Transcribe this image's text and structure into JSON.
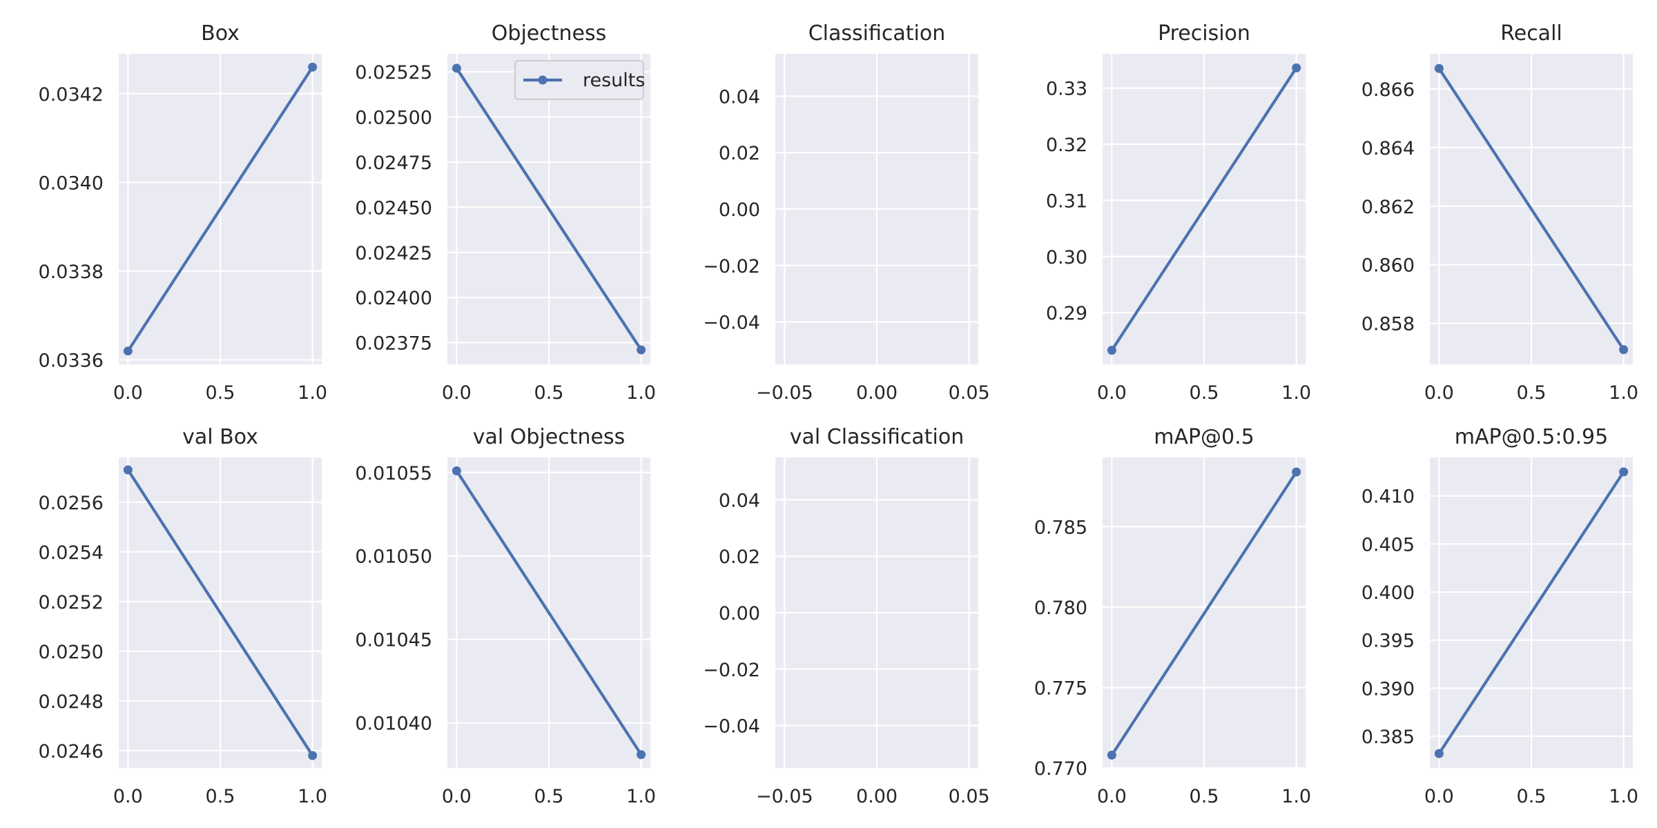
{
  "chart_data": [
    {
      "type": "line",
      "title": "Box",
      "x": [
        0,
        1
      ],
      "series": [
        {
          "values": [
            0.03362,
            0.03426
          ]
        }
      ],
      "xlim": [
        -0.05,
        1.05
      ],
      "ylim": [
        0.03359,
        0.03429
      ],
      "xticks": [
        "0.0",
        "0.5",
        "1.0"
      ],
      "yticks": [
        "0.0336",
        "0.0338",
        "0.0340",
        "0.0342"
      ],
      "grid": true
    },
    {
      "type": "line",
      "title": "Objectness",
      "x": [
        0,
        1
      ],
      "series": [
        {
          "name": "results",
          "values": [
            0.02527,
            0.02371
          ]
        }
      ],
      "legend": "top-right",
      "xlim": [
        -0.05,
        1.05
      ],
      "ylim": [
        0.02363,
        0.02535
      ],
      "xticks": [
        "0.0",
        "0.5",
        "1.0"
      ],
      "yticks": [
        "0.02375",
        "0.02400",
        "0.02425",
        "0.02450",
        "0.02475",
        "0.02500",
        "0.02525"
      ],
      "grid": true
    },
    {
      "type": "line",
      "title": "Classification",
      "x": [],
      "series": [
        {
          "values": []
        }
      ],
      "xlim": [
        -0.055,
        0.055
      ],
      "ylim": [
        -0.055,
        0.055
      ],
      "xticks": [
        "−0.05",
        "0.00",
        "0.05"
      ],
      "yticks": [
        "−0.04",
        "−0.02",
        "0.00",
        "0.02",
        "0.04"
      ],
      "grid": true
    },
    {
      "type": "line",
      "title": "Precision",
      "x": [
        0,
        1
      ],
      "series": [
        {
          "values": [
            0.2833,
            0.3336
          ]
        }
      ],
      "xlim": [
        -0.05,
        1.05
      ],
      "ylim": [
        0.2808,
        0.3361
      ],
      "xticks": [
        "0.0",
        "0.5",
        "1.0"
      ],
      "yticks": [
        "0.29",
        "0.30",
        "0.31",
        "0.32",
        "0.33"
      ],
      "grid": true
    },
    {
      "type": "line",
      "title": "Recall",
      "x": [
        0,
        1
      ],
      "series": [
        {
          "values": [
            0.8667,
            0.8571
          ]
        }
      ],
      "xlim": [
        -0.05,
        1.05
      ],
      "ylim": [
        0.8566,
        0.8672
      ],
      "xticks": [
        "0.0",
        "0.5",
        "1.0"
      ],
      "yticks": [
        "0.858",
        "0.860",
        "0.862",
        "0.864",
        "0.866"
      ],
      "grid": true
    },
    {
      "type": "line",
      "title": "val Box",
      "x": [
        0,
        1
      ],
      "series": [
        {
          "values": [
            0.02573,
            0.02458
          ]
        }
      ],
      "xlim": [
        -0.05,
        1.05
      ],
      "ylim": [
        0.02453,
        0.02578
      ],
      "xticks": [
        "0.0",
        "0.5",
        "1.0"
      ],
      "yticks": [
        "0.0246",
        "0.0248",
        "0.0250",
        "0.0252",
        "0.0254",
        "0.0256"
      ],
      "grid": true
    },
    {
      "type": "line",
      "title": "val Objectness",
      "x": [
        0,
        1
      ],
      "series": [
        {
          "values": [
            0.010551,
            0.010381
          ]
        }
      ],
      "xlim": [
        -0.05,
        1.05
      ],
      "ylim": [
        0.010373,
        0.010559
      ],
      "xticks": [
        "0.0",
        "0.5",
        "1.0"
      ],
      "yticks": [
        "0.01040",
        "0.01045",
        "0.01050",
        "0.01055"
      ],
      "grid": true
    },
    {
      "type": "line",
      "title": "val Classification",
      "x": [],
      "series": [
        {
          "values": []
        }
      ],
      "xlim": [
        -0.055,
        0.055
      ],
      "ylim": [
        -0.055,
        0.055
      ],
      "xticks": [
        "−0.05",
        "0.00",
        "0.05"
      ],
      "yticks": [
        "−0.04",
        "−0.02",
        "0.00",
        "0.02",
        "0.04"
      ],
      "grid": true
    },
    {
      "type": "line",
      "title": "mAP@0.5",
      "x": [
        0,
        1
      ],
      "series": [
        {
          "values": [
            0.7708,
            0.7884
          ]
        }
      ],
      "xlim": [
        -0.05,
        1.05
      ],
      "ylim": [
        0.77,
        0.7893
      ],
      "xticks": [
        "0.0",
        "0.5",
        "1.0"
      ],
      "yticks": [
        "0.770",
        "0.775",
        "0.780",
        "0.785"
      ],
      "grid": true
    },
    {
      "type": "line",
      "title": "mAP@0.5:0.95",
      "x": [
        0,
        1
      ],
      "series": [
        {
          "values": [
            0.3832,
            0.4125
          ]
        }
      ],
      "xlim": [
        -0.05,
        1.05
      ],
      "ylim": [
        0.3817,
        0.414
      ],
      "xticks": [
        "0.0",
        "0.5",
        "1.0"
      ],
      "yticks": [
        "0.385",
        "0.390",
        "0.395",
        "0.400",
        "0.405",
        "0.410"
      ],
      "grid": true
    }
  ],
  "colors": {
    "line": "#4c72b0",
    "panel": "#eaeaf2",
    "grid": "#ffffff",
    "text": "#262626"
  }
}
